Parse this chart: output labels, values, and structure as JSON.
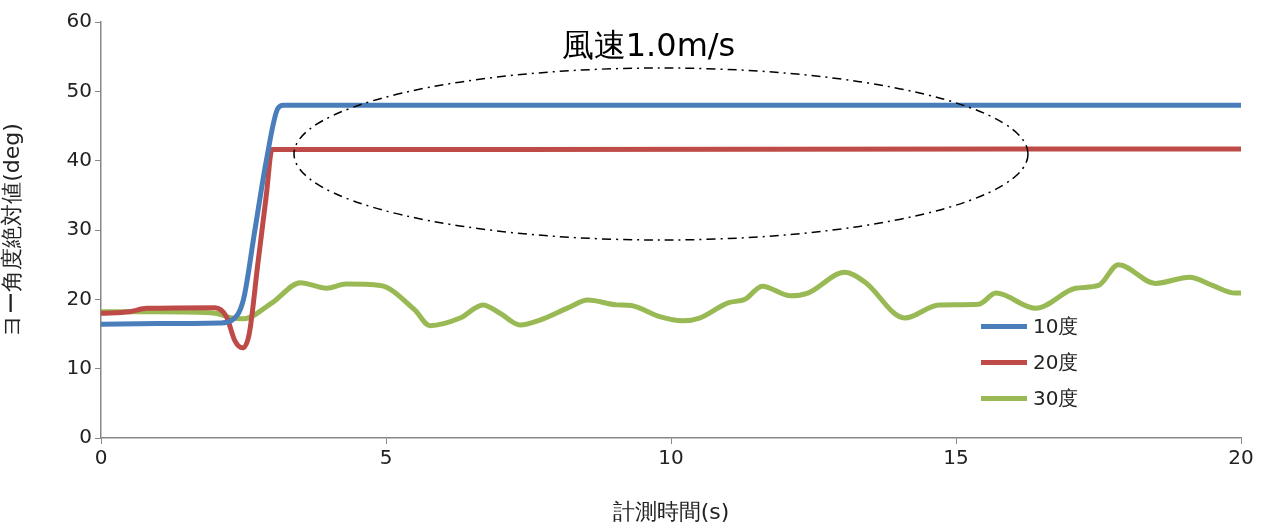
{
  "chart_data": {
    "type": "line",
    "title": "風速1.0m/s",
    "xlabel": "計測時間(s)",
    "ylabel": "ヨー角度絶対値(deg)",
    "xlim": [
      0,
      20
    ],
    "xticks": [
      0,
      5,
      10,
      15,
      20
    ],
    "ylim": [
      0,
      60
    ],
    "yticks": [
      0,
      10,
      20,
      30,
      40,
      50,
      60
    ],
    "grid": false,
    "legend": "bottom right",
    "marker": "none",
    "line_style": "solid",
    "series": [
      {
        "name": "10度",
        "color": "#4a7ebb",
        "x": [
          0,
          1,
          2.1,
          2.3,
          2.5,
          2.7,
          2.9,
          3.1,
          3.2,
          20
        ],
        "values": [
          16.4,
          16.5,
          16.6,
          17,
          20,
          30,
          40,
          47.5,
          48,
          48
        ]
      },
      {
        "name": "20度",
        "color": "#be4b48",
        "x": [
          0,
          0.5,
          0.8,
          2.0,
          2.2,
          2.35,
          2.48,
          2.6,
          2.75,
          2.9,
          3.0,
          20
        ],
        "values": [
          18,
          18.2,
          18.7,
          18.8,
          17.5,
          14,
          13,
          15,
          25,
          35,
          41.6,
          41.7
        ]
      },
      {
        "name": "30度",
        "color": "#98b954",
        "x": [
          0,
          1,
          2,
          2.3,
          2.5,
          3,
          3.5,
          3.96,
          4.3,
          4.9,
          5.5,
          5.77,
          6.3,
          6.7,
          7,
          7.35,
          7.7,
          8.2,
          8.54,
          9.05,
          9.3,
          9.8,
          10.2,
          10.5,
          11,
          11.3,
          11.6,
          12.1,
          12.4,
          13.05,
          13.4,
          14.1,
          14.7,
          15.4,
          15.7,
          16.4,
          17.1,
          17.5,
          17.85,
          18.5,
          19.1,
          19.5,
          19.9,
          20
        ],
        "values": [
          18.2,
          18.2,
          18,
          17.3,
          17.2,
          19.5,
          22.4,
          21.6,
          22.2,
          22,
          18.5,
          16.2,
          17.3,
          19.2,
          18,
          16.3,
          17,
          18.8,
          19.9,
          19.2,
          19.1,
          17.5,
          16.9,
          17.3,
          19.5,
          20,
          21.9,
          20.5,
          20.9,
          23.9,
          22.5,
          17.3,
          19.2,
          19.3,
          20.9,
          18.7,
          21.6,
          22,
          25,
          22.3,
          23.2,
          22,
          20.9,
          20.9
        ]
      }
    ]
  }
}
